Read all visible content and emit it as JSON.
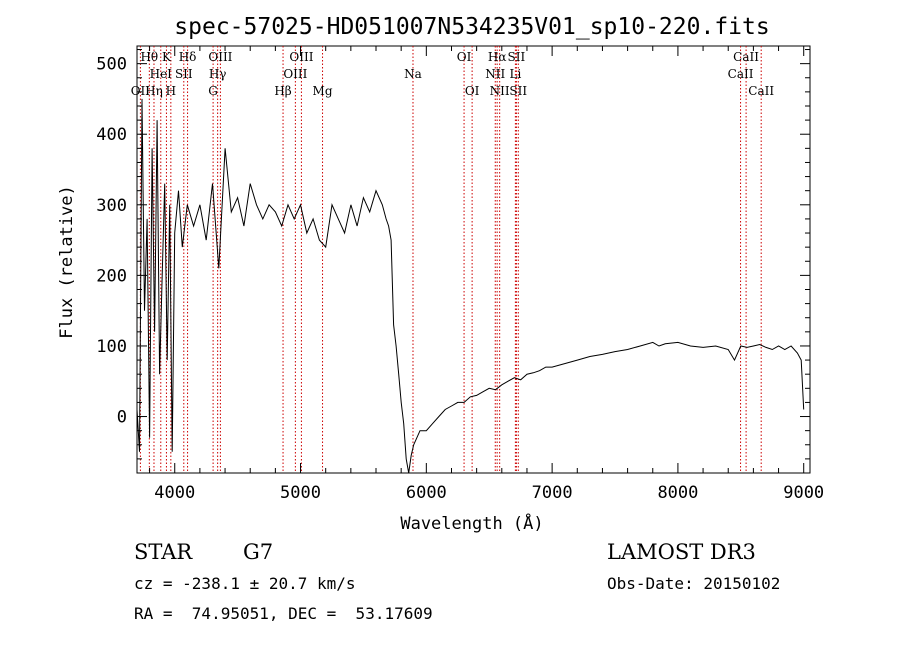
{
  "chart_data": {
    "type": "line",
    "title": "spec-57025-HD051007N534235V01_sp10-220.fits",
    "xlabel": "Wavelength (Å)",
    "ylabel": "Flux (relative)",
    "xlim": [
      3700,
      9050
    ],
    "ylim": [
      -80,
      525
    ],
    "x_ticks": [
      4000,
      5000,
      6000,
      7000,
      8000,
      9000
    ],
    "x_tick_labels": [
      "4000",
      "5000",
      "6000",
      "7000",
      "8000",
      "9000"
    ],
    "y_ticks": [
      0,
      100,
      200,
      300,
      400,
      500
    ],
    "y_tick_labels": [
      "0",
      "100",
      "200",
      "300",
      "400",
      "500"
    ],
    "grid": false,
    "series": [
      {
        "x": [
          3700,
          3720,
          3740,
          3760,
          3780,
          3800,
          3820,
          3840,
          3860,
          3880,
          3900,
          3920,
          3940,
          3960,
          3980,
          4000,
          4030,
          4060,
          4100,
          4150,
          4200,
          4250,
          4300,
          4350,
          4400,
          4450,
          4500,
          4550,
          4600,
          4650,
          4700,
          4750,
          4800,
          4850,
          4900,
          4950,
          5000,
          5050,
          5100,
          5150,
          5200,
          5250,
          5300,
          5350,
          5400,
          5450,
          5500,
          5550,
          5600,
          5650,
          5680,
          5700,
          5720,
          5740,
          5760,
          5780,
          5800,
          5820,
          5840,
          5860,
          5880,
          5900,
          5950,
          6000,
          6050,
          6100,
          6150,
          6200,
          6250,
          6300,
          6350,
          6400,
          6450,
          6500,
          6550,
          6600,
          6650,
          6700,
          6750,
          6800,
          6850,
          6900,
          6950,
          7000,
          7100,
          7200,
          7300,
          7400,
          7500,
          7600,
          7700,
          7800,
          7850,
          7900,
          8000,
          8100,
          8200,
          8300,
          8400,
          8450,
          8500,
          8550,
          8600,
          8650,
          8700,
          8750,
          8800,
          8850,
          8900,
          8950,
          8980,
          9000
        ],
        "y": [
          10,
          -50,
          450,
          150,
          280,
          -30,
          380,
          120,
          420,
          60,
          200,
          330,
          80,
          300,
          -50,
          260,
          320,
          240,
          300,
          270,
          300,
          250,
          330,
          210,
          380,
          290,
          310,
          270,
          330,
          300,
          280,
          300,
          290,
          270,
          300,
          280,
          300,
          260,
          280,
          250,
          240,
          300,
          280,
          260,
          300,
          270,
          310,
          290,
          320,
          300,
          280,
          270,
          250,
          130,
          100,
          60,
          20,
          -10,
          -60,
          -80,
          -55,
          -40,
          -20,
          -20,
          -10,
          0,
          10,
          15,
          20,
          20,
          28,
          30,
          35,
          40,
          38,
          45,
          50,
          55,
          52,
          60,
          62,
          65,
          70,
          70,
          75,
          80,
          85,
          88,
          92,
          95,
          100,
          105,
          100,
          103,
          105,
          100,
          98,
          100,
          95,
          80,
          100,
          98,
          100,
          102,
          98,
          95,
          100,
          95,
          100,
          90,
          80,
          10
        ]
      }
    ],
    "line_labels": [
      {
        "label": "OII",
        "wavelength": 3727,
        "row": 2
      },
      {
        "label": "Hθ",
        "wavelength": 3798,
        "row": 0
      },
      {
        "label": "Hη",
        "wavelength": 3835,
        "row": 2
      },
      {
        "label": "HeI",
        "wavelength": 3889,
        "row": 1
      },
      {
        "label": "K",
        "wavelength": 3934,
        "row": 0
      },
      {
        "label": "H",
        "wavelength": 3969,
        "row": 2
      },
      {
        "label": "SII",
        "wavelength": 4072,
        "row": 1
      },
      {
        "label": "Hδ",
        "wavelength": 4102,
        "row": 0
      },
      {
        "label": "G",
        "wavelength": 4305,
        "row": 2
      },
      {
        "label": "Hγ",
        "wavelength": 4341,
        "row": 1
      },
      {
        "label": "OIII",
        "wavelength": 4363,
        "row": 0
      },
      {
        "label": "Hβ",
        "wavelength": 4861,
        "row": 2
      },
      {
        "label": "OIII",
        "wavelength": 4959,
        "row": 1
      },
      {
        "label": "OIII",
        "wavelength": 5007,
        "row": 0
      },
      {
        "label": "Mg",
        "wavelength": 5175,
        "row": 2
      },
      {
        "label": "Na",
        "wavelength": 5894,
        "row": 1
      },
      {
        "label": "OI",
        "wavelength": 6300,
        "row": 0
      },
      {
        "label": "OI",
        "wavelength": 6364,
        "row": 2
      },
      {
        "label": "NII",
        "wavelength": 6548,
        "row": 1
      },
      {
        "label": "Hα",
        "wavelength": 6563,
        "row": 0
      },
      {
        "label": "NII",
        "wavelength": 6583,
        "row": 2
      },
      {
        "label": "Li",
        "wavelength": 6708,
        "row": 1
      },
      {
        "label": "SII",
        "wavelength": 6716,
        "row": 0
      },
      {
        "label": "SII",
        "wavelength": 6731,
        "row": 2
      },
      {
        "label": "CaII",
        "wavelength": 8498,
        "row": 1
      },
      {
        "label": "CaII",
        "wavelength": 8542,
        "row": 0
      },
      {
        "label": "CaII",
        "wavelength": 8662,
        "row": 2
      }
    ]
  },
  "info": {
    "object_class": "STAR",
    "subclass": "G7",
    "survey": "LAMOST DR3",
    "cz": "cz = -238.1 ± 20.7 km/s",
    "obs_date": "Obs-Date: 20150102",
    "coords": "RA =  74.95051, DEC =  53.17609"
  },
  "colors": {
    "spectrum": "#000000",
    "line_markers": "#cc0000",
    "axes": "#000000",
    "background": "#ffffff"
  }
}
